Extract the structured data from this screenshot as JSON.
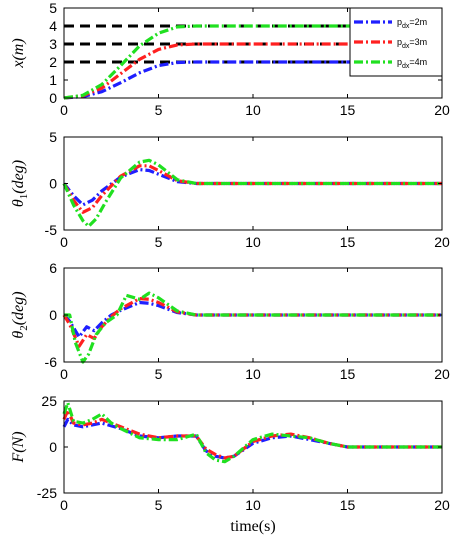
{
  "chart_data": [
    {
      "type": "line",
      "ylabel_main": "x",
      "ylabel_unit": "m",
      "xlim": [
        0,
        20
      ],
      "ylim": [
        0,
        5
      ],
      "xticks": [
        "0",
        "5",
        "10",
        "15",
        "20"
      ],
      "yticks": [
        "0",
        "1",
        "2",
        "3",
        "4",
        "5"
      ],
      "legend": {
        "position": "top-right",
        "entries": [
          {
            "pre": "p",
            "sub": "dx",
            "post": "=2m",
            "color": "#1f1fff"
          },
          {
            "pre": "p",
            "sub": "dx",
            "post": "=3m",
            "color": "#ff2020"
          },
          {
            "pre": "p",
            "sub": "dx",
            "post": "=4m",
            "color": "#20e020"
          }
        ]
      },
      "reference_lines": [
        2,
        3,
        4
      ],
      "series": [
        {
          "color": "#1f1fff",
          "x": [
            0,
            1,
            2,
            3,
            4,
            5,
            6,
            7,
            10,
            15,
            20
          ],
          "y": [
            0,
            0.08,
            0.35,
            0.85,
            1.4,
            1.8,
            1.97,
            2,
            2,
            2,
            2
          ]
        },
        {
          "color": "#ff2020",
          "x": [
            0,
            1,
            2,
            3,
            4,
            5,
            6,
            7,
            10,
            15,
            20
          ],
          "y": [
            0,
            0.12,
            0.55,
            1.35,
            2.15,
            2.7,
            2.95,
            3,
            3,
            3,
            3
          ]
        },
        {
          "color": "#20e020",
          "x": [
            0,
            1,
            2,
            3,
            4,
            5,
            6,
            7,
            10,
            15,
            20
          ],
          "y": [
            0,
            0.15,
            0.75,
            1.8,
            2.9,
            3.6,
            3.95,
            4,
            4,
            4,
            4
          ]
        }
      ]
    },
    {
      "type": "line",
      "ylabel_main": "θ",
      "ylabel_sub": "1",
      "ylabel_unit": "deg",
      "xlim": [
        0,
        20
      ],
      "ylim": [
        -5,
        5
      ],
      "xticks": [
        "0",
        "5",
        "10",
        "15",
        "20"
      ],
      "yticks": [
        "-5",
        "0",
        "5"
      ],
      "series": [
        {
          "color": "#1f1fff",
          "x": [
            0,
            0.5,
            1,
            1.5,
            2,
            3,
            4,
            4.5,
            5,
            6,
            7,
            8,
            10,
            15,
            20
          ],
          "y": [
            0,
            -1.3,
            -2.3,
            -1.8,
            -0.8,
            0.7,
            1.5,
            1.4,
            1.0,
            0.2,
            0,
            0,
            0,
            0,
            0
          ]
        },
        {
          "color": "#ff2020",
          "x": [
            0,
            0.5,
            1,
            1.5,
            2,
            3,
            4,
            4.5,
            5,
            6,
            7,
            8,
            10,
            15,
            20
          ],
          "y": [
            0,
            -1.8,
            -3.1,
            -2.6,
            -1.3,
            0.8,
            1.9,
            1.9,
            1.4,
            0.3,
            0,
            0,
            0,
            0,
            0
          ]
        },
        {
          "color": "#20e020",
          "x": [
            0,
            0.5,
            1,
            1.3,
            1.7,
            2.2,
            3,
            4,
            4.5,
            5,
            6,
            7,
            8,
            10,
            15,
            20
          ],
          "y": [
            0,
            -2.3,
            -4.0,
            -4.6,
            -3.8,
            -2.0,
            0.6,
            2.3,
            2.5,
            2.0,
            0.4,
            0,
            0,
            0,
            0,
            0
          ]
        }
      ]
    },
    {
      "type": "line",
      "ylabel_main": "θ",
      "ylabel_sub": "2",
      "ylabel_unit": "deg",
      "xlim": [
        0,
        20
      ],
      "ylim": [
        -6,
        6
      ],
      "xticks": [
        "0",
        "5",
        "10",
        "15",
        "20"
      ],
      "yticks": [
        "-6",
        "0",
        "6"
      ],
      "series": [
        {
          "color": "#1f1fff",
          "x": [
            0,
            0.3,
            0.8,
            1.2,
            1.6,
            2,
            2.5,
            3,
            4,
            4.5,
            5,
            6,
            7,
            8,
            10,
            15,
            20
          ],
          "y": [
            0,
            -0.8,
            -2.8,
            -1.5,
            -2.0,
            -1.0,
            0,
            0.6,
            1.6,
            1.5,
            1.2,
            0.3,
            0,
            0,
            0,
            0,
            0
          ]
        },
        {
          "color": "#ff2020",
          "x": [
            0,
            0.3,
            0.8,
            1.2,
            1.6,
            2,
            2.5,
            3,
            4,
            4.5,
            5,
            6,
            7,
            8,
            10,
            15,
            20
          ],
          "y": [
            0,
            -1.2,
            -4.0,
            -2.5,
            -3.0,
            -1.5,
            -0.2,
            0.8,
            2.1,
            2.0,
            1.6,
            0.4,
            0,
            0,
            0,
            0,
            0
          ]
        },
        {
          "color": "#20e020",
          "x": [
            0,
            0.3,
            0.6,
            1,
            1.3,
            1.7,
            2.2,
            2.8,
            3.3,
            4,
            4.5,
            5,
            6,
            7,
            8,
            10,
            15,
            20
          ],
          "y": [
            0,
            0,
            -3.5,
            -6,
            -5.0,
            -2.5,
            -1.0,
            0,
            2.5,
            2.0,
            2.8,
            2.2,
            0.5,
            0,
            0,
            0,
            0,
            0
          ]
        }
      ]
    },
    {
      "type": "line",
      "ylabel_main": "F",
      "ylabel_unit": "N",
      "xlabel": "time(s)",
      "xlim": [
        0,
        20
      ],
      "ylim": [
        -25,
        25
      ],
      "xticks": [
        "0",
        "5",
        "10",
        "15",
        "20"
      ],
      "yticks": [
        "-25",
        "0",
        "25"
      ],
      "series": [
        {
          "color": "#1f1fff",
          "x": [
            0,
            0.2,
            0.5,
            1,
            1.5,
            2,
            3,
            4,
            5,
            6,
            7,
            7.5,
            8,
            8.5,
            9,
            10,
            11,
            12,
            13,
            14,
            15,
            16,
            20
          ],
          "y": [
            11,
            15,
            12,
            11,
            12,
            13,
            10,
            6,
            5,
            6,
            6,
            -2,
            -5,
            -6,
            -5,
            2,
            5,
            6,
            4,
            2,
            0,
            0,
            0
          ]
        },
        {
          "color": "#ff2020",
          "x": [
            0,
            0.2,
            0.5,
            1,
            1.5,
            2,
            3,
            4,
            5,
            6,
            7,
            7.5,
            8,
            8.5,
            9,
            10,
            11,
            12,
            13,
            14,
            15,
            16,
            20
          ],
          "y": [
            15,
            20,
            13,
            12,
            13,
            15,
            11,
            7,
            5,
            6,
            6,
            -1,
            -4,
            -6,
            -5,
            3,
            6,
            7,
            5,
            2,
            0,
            0,
            0
          ]
        },
        {
          "color": "#20e020",
          "x": [
            0,
            0.2,
            0.5,
            1,
            1.5,
            2,
            2.5,
            3,
            4,
            5,
            6,
            7,
            7.5,
            8,
            8.5,
            9,
            10,
            11,
            12,
            13,
            14,
            15,
            16,
            20
          ],
          "y": [
            18,
            24,
            14,
            13,
            15,
            18,
            13,
            10,
            5,
            4,
            4,
            7,
            -3,
            -7,
            -8,
            -5,
            4,
            7,
            6,
            5,
            2,
            0,
            0,
            0
          ]
        }
      ]
    }
  ]
}
